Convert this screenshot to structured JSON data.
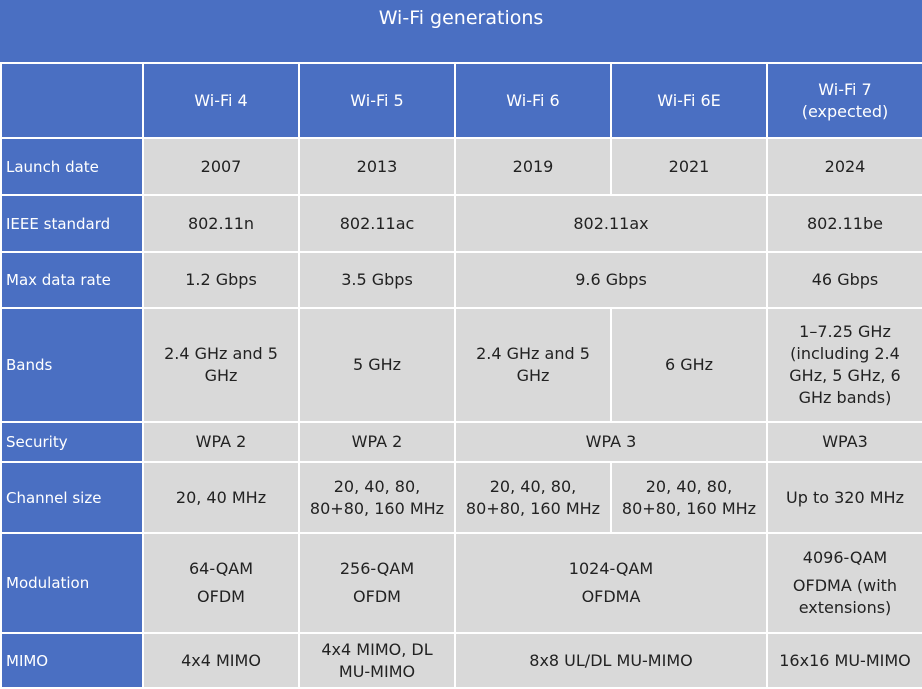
{
  "table": {
    "title": "Wi-Fi generations",
    "columns": [
      "Wi-Fi 4",
      "Wi-Fi 5",
      "Wi-Fi 6",
      "Wi-Fi 6E",
      "Wi-Fi 7 (expected)"
    ],
    "rows": [
      {
        "label": "Launch date",
        "cells": [
          "2007",
          "2013",
          "2019",
          "2021",
          "2024"
        ]
      },
      {
        "label": "IEEE standard",
        "cells": [
          "802.11n",
          "802.11ac",
          "802.11ax",
          "802.11be"
        ]
      },
      {
        "label": "Max data rate",
        "cells": [
          "1.2 Gbps",
          "3.5 Gbps",
          "9.6 Gbps",
          "46 Gbps"
        ]
      },
      {
        "label": "Bands",
        "cells": [
          "2.4 GHz and 5 GHz",
          "5 GHz",
          "2.4 GHz and 5 GHz",
          "6 GHz",
          "1–7.25 GHz (including 2.4 GHz, 5 GHz, 6 GHz bands)"
        ]
      },
      {
        "label": "Security",
        "cells": [
          "WPA 2",
          "WPA 2",
          "WPA 3",
          "WPA3"
        ]
      },
      {
        "label": "Channel size",
        "cells": [
          "20, 40 MHz",
          "20, 40, 80, 80+80, 160 MHz",
          "20, 40, 80, 80+80, 160 MHz",
          "20, 40, 80, 80+80, 160 MHz",
          "Up to 320 MHz"
        ]
      },
      {
        "label": "Modulation",
        "cells": [
          [
            "64-QAM",
            "OFDM"
          ],
          [
            "256-QAM",
            "OFDM"
          ],
          [
            "1024-QAM",
            "OFDMA"
          ],
          [
            "4096-QAM",
            "OFDMA (with extensions)"
          ]
        ]
      },
      {
        "label": "MIMO",
        "cells": [
          "4x4 MIMO",
          "4x4 MIMO, DL MU-MIMO",
          "8x8 UL/DL MU-MIMO",
          "16x16 MU-MIMO"
        ]
      }
    ]
  }
}
